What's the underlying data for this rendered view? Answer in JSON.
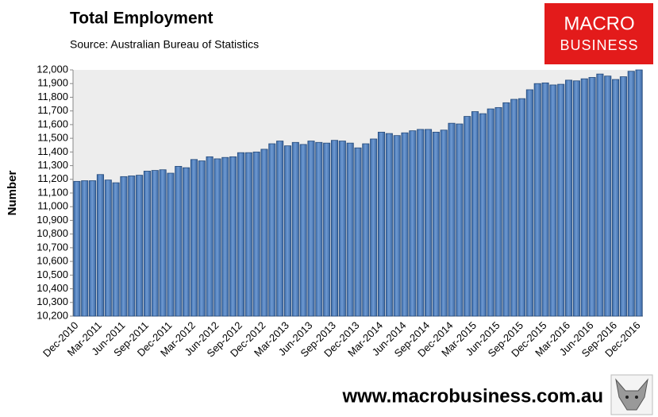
{
  "chart_data": {
    "type": "bar",
    "title": "Total Employment",
    "subtitle": "Source: Australian Bureau of Statistics",
    "y_label": "Number",
    "logo": [
      "MACRO",
      "BUSINESS"
    ],
    "footer": "www.macrobusiness.com.au",
    "color": "#4f81bd",
    "grid": false,
    "ylim": [
      10200,
      12000
    ],
    "yticks": [
      {
        "value": 10200,
        "label": "10,200"
      },
      {
        "value": 10300,
        "label": "10,300"
      },
      {
        "value": 10400,
        "label": "10,400"
      },
      {
        "value": 10500,
        "label": "10,500"
      },
      {
        "value": 10600,
        "label": "10,600"
      },
      {
        "value": 10700,
        "label": "10,700"
      },
      {
        "value": 10800,
        "label": "10,800"
      },
      {
        "value": 10900,
        "label": "10,900"
      },
      {
        "value": 11000,
        "label": "11,000"
      },
      {
        "value": 11100,
        "label": "11,100"
      },
      {
        "value": 11200,
        "label": "11,200"
      },
      {
        "value": 11300,
        "label": "11,300"
      },
      {
        "value": 11400,
        "label": "11,400"
      },
      {
        "value": 11500,
        "label": "11,500"
      },
      {
        "value": 11600,
        "label": "11,600"
      },
      {
        "value": 11700,
        "label": "11,700"
      },
      {
        "value": 11800,
        "label": "11,800"
      },
      {
        "value": 11900,
        "label": "11,900"
      },
      {
        "value": 12000,
        "label": "12,000"
      }
    ],
    "categories": [
      "Dec-2010",
      null,
      null,
      "Mar-2011",
      null,
      null,
      "Jun-2011",
      null,
      null,
      "Sep-2011",
      null,
      null,
      "Dec-2011",
      null,
      null,
      "Mar-2012",
      null,
      null,
      "Jun-2012",
      null,
      null,
      "Sep-2012",
      null,
      null,
      "Dec-2012",
      null,
      null,
      "Mar-2013",
      null,
      null,
      "Jun-2013",
      null,
      null,
      "Sep-2013",
      null,
      null,
      "Dec-2013",
      null,
      null,
      "Mar-2014",
      null,
      null,
      "Jun-2014",
      null,
      null,
      "Sep-2014",
      null,
      null,
      "Dec-2014",
      null,
      null,
      "Mar-2015",
      null,
      null,
      "Jun-2015",
      null,
      null,
      "Sep-2015",
      null,
      null,
      "Dec-2015",
      null,
      null,
      "Mar-2016",
      null,
      null,
      "Jun-2016",
      null,
      null,
      "Sep-2016",
      null,
      null,
      "Dec-2016"
    ],
    "values": [
      11185,
      11190,
      11190,
      11235,
      11195,
      11175,
      11220,
      11225,
      11230,
      11260,
      11265,
      11270,
      11245,
      11295,
      11285,
      11345,
      11335,
      11365,
      11350,
      11360,
      11365,
      11395,
      11395,
      11400,
      11420,
      11460,
      11480,
      11445,
      11470,
      11455,
      11480,
      11470,
      11465,
      11485,
      11480,
      11465,
      11430,
      11460,
      11495,
      11545,
      11535,
      11520,
      11540,
      11555,
      11565,
      11565,
      11545,
      11560,
      11610,
      11605,
      11660,
      11695,
      11680,
      11715,
      11725,
      11760,
      11785,
      11790,
      11855,
      11900,
      11905,
      11890,
      11895,
      11925,
      11920,
      11935,
      11945,
      11970,
      11955,
      11930,
      11950,
      11990,
      12000
    ]
  }
}
